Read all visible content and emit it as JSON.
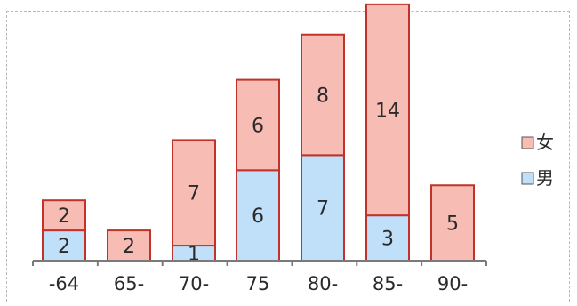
{
  "chart_data": {
    "type": "bar",
    "stacked": true,
    "categories": [
      "-64",
      "65-",
      "70-",
      "75",
      "80-",
      "85-",
      "90-"
    ],
    "series": [
      {
        "name": "男",
        "color": "#bfe0f8",
        "values": [
          2,
          0,
          1,
          6,
          7,
          3,
          0
        ]
      },
      {
        "name": "女",
        "color": "#f7bcb3",
        "values": [
          2,
          2,
          7,
          6,
          8,
          14,
          5
        ]
      }
    ],
    "title": "",
    "xlabel": "",
    "ylabel": "",
    "ylim": [
      0,
      17
    ],
    "grid": false,
    "legend_position": "right",
    "legend_order": [
      "女",
      "男"
    ]
  }
}
